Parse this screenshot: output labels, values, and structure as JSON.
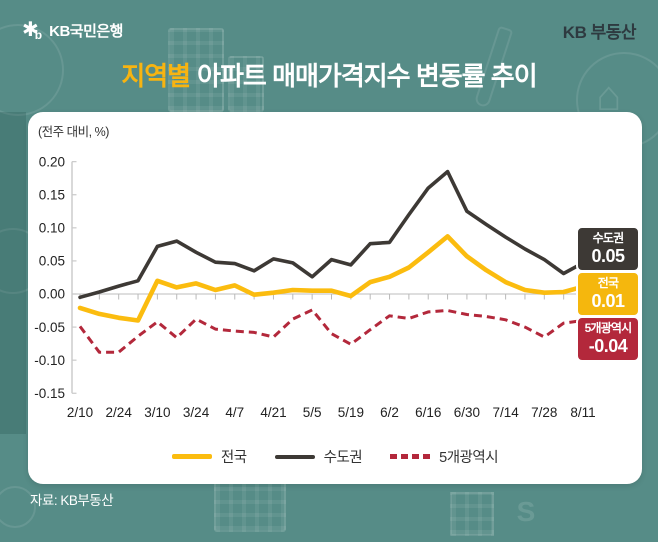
{
  "header": {
    "logo_symbol": "✱",
    "logo_sub": "b",
    "logo_text": "KB국민은행",
    "brand": "KB 부동산"
  },
  "title": {
    "highlight": "지역별",
    "rest": "아파트 매매가격지수 변동률 추이"
  },
  "footer": {
    "source": "자료: KB부동산"
  },
  "colors": {
    "background": "#568C87",
    "card": "#FFFFFF",
    "national": "#FBBC0F",
    "capital_area": "#3D3935",
    "five_metro": "#B3283B",
    "title_highlight": "#F7B411",
    "axis": "#C9C9C9",
    "tick": "#B9B9B9",
    "text_dark": "#222222"
  },
  "chart_data": {
    "type": "line",
    "title": "지역별 아파트 매매가격지수 변동률 추이",
    "unit_label": "(전주 대비, %)",
    "ylim": [
      -0.15,
      0.2
    ],
    "y_ticks": [
      "0.20",
      "0.15",
      "0.10",
      "0.05",
      "0.00",
      "-0.05",
      "-0.10",
      "-0.15"
    ],
    "x": [
      "2/10",
      "2/17",
      "2/24",
      "3/3",
      "3/10",
      "3/17",
      "3/24",
      "3/31",
      "4/7",
      "4/14",
      "4/21",
      "4/28",
      "5/5",
      "5/12",
      "5/19",
      "5/26",
      "6/2",
      "6/9",
      "6/16",
      "6/23",
      "6/30",
      "7/7",
      "7/14",
      "7/21",
      "7/28",
      "8/4",
      "8/11"
    ],
    "x_tick_labels": [
      "2/10",
      "2/24",
      "3/10",
      "3/24",
      "4/7",
      "4/21",
      "5/5",
      "5/19",
      "6/2",
      "6/16",
      "6/30",
      "7/14",
      "7/28",
      "8/11"
    ],
    "grid": "zero-line-only",
    "legend_position": "bottom",
    "series": [
      {
        "id": "national",
        "name": "전국",
        "color": "#FBBC0F",
        "style": "solid",
        "values": [
          -0.021,
          -0.03,
          -0.036,
          -0.04,
          0.02,
          0.01,
          0.016,
          0.006,
          0.013,
          -0.001,
          0.002,
          0.006,
          0.005,
          0.005,
          -0.003,
          0.018,
          0.026,
          0.04,
          0.063,
          0.087,
          0.057,
          0.036,
          0.018,
          0.006,
          0.002,
          0.003,
          0.011
        ],
        "end_label": "전국",
        "end_value": "0.01"
      },
      {
        "id": "capital-area",
        "name": "수도권",
        "color": "#3D3935",
        "style": "solid",
        "values": [
          -0.005,
          0.003,
          0.012,
          0.02,
          0.072,
          0.08,
          0.063,
          0.048,
          0.046,
          0.035,
          0.053,
          0.047,
          0.026,
          0.052,
          0.044,
          0.076,
          0.078,
          0.12,
          0.16,
          0.185,
          0.125,
          0.105,
          0.086,
          0.068,
          0.052,
          0.031,
          0.047
        ],
        "end_label": "수도권",
        "end_value": "0.05"
      },
      {
        "id": "five-metro-cities",
        "name": "5개광역시",
        "color": "#B3283B",
        "style": "dashed",
        "values": [
          -0.049,
          -0.088,
          -0.088,
          -0.064,
          -0.042,
          -0.066,
          -0.038,
          -0.053,
          -0.056,
          -0.058,
          -0.065,
          -0.038,
          -0.024,
          -0.06,
          -0.076,
          -0.054,
          -0.033,
          -0.037,
          -0.027,
          -0.025,
          -0.031,
          -0.034,
          -0.039,
          -0.05,
          -0.065,
          -0.044,
          -0.04
        ],
        "end_label": "5개광역시",
        "end_value": "-0.04"
      }
    ]
  }
}
